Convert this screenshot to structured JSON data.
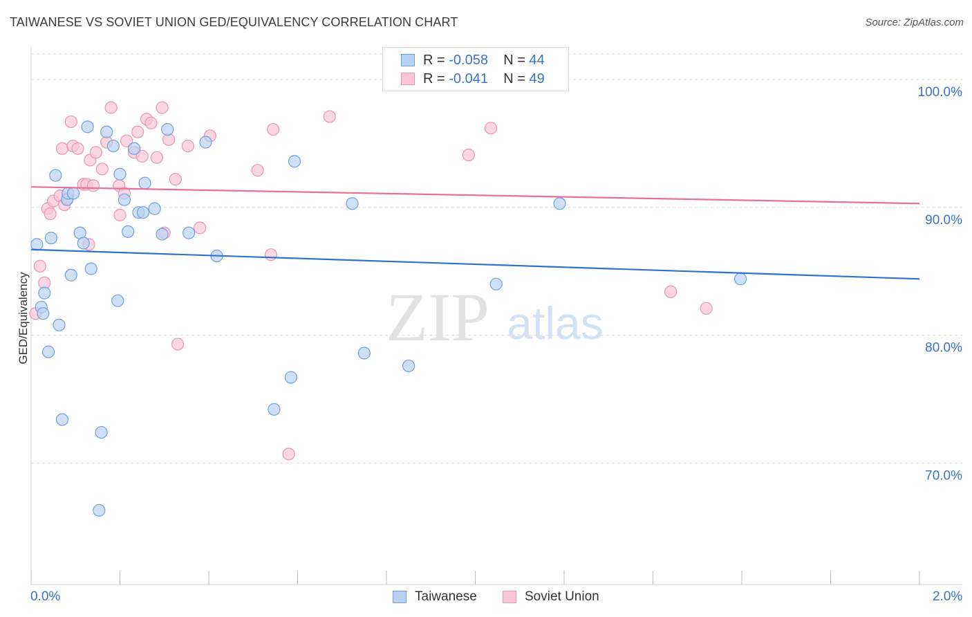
{
  "title": "TAIWANESE VS SOVIET UNION GED/EQUIVALENCY CORRELATION CHART",
  "source": "Source: ZipAtlas.com",
  "watermark": {
    "zip": "ZIP",
    "atlas": "atlas"
  },
  "legend_stats": {
    "taiwanese": {
      "r_label": "R =",
      "r_value": "-0.058",
      "n_label": "N =",
      "n_value": "44"
    },
    "soviet": {
      "r_label": "R =",
      "r_value": "-0.041",
      "n_label": "N =",
      "n_value": "49"
    }
  },
  "colors": {
    "taiwanese_fill": "#b9d2f2",
    "taiwanese_stroke": "#6f9fdc",
    "taiwanese_line": "#2f73cf",
    "soviet_fill": "#f8c6d6",
    "soviet_stroke": "#e894b2",
    "soviet_line": "#e6719a",
    "tick_label": "#3b72c4",
    "grid": "#dddddd"
  },
  "chart_data": {
    "type": "scatter",
    "title": "TAIWANESE VS SOVIET UNION GED/EQUIVALENCY CORRELATION CHART",
    "xlabel": "",
    "ylabel": "GED/Equivalency",
    "xlim": [
      0,
      2.0
    ],
    "ylim": [
      60.5,
      102.0
    ],
    "x_tick_labels": [
      "0.0%",
      "2.0%"
    ],
    "y_ticks": [
      70,
      80,
      90,
      100
    ],
    "y_tick_labels": [
      "70.0%",
      "80.0%",
      "90.0%",
      "100.0%"
    ],
    "grid": true,
    "legend": [
      "Taiwanese",
      "Soviet Union"
    ],
    "series": [
      {
        "name": "Taiwanese",
        "trend": {
          "x": [
            0.0,
            2.0
          ],
          "y": [
            86.7,
            84.4
          ]
        },
        "points": [
          [
            0.013,
            87.1
          ],
          [
            0.023,
            82.2
          ],
          [
            0.027,
            81.7
          ],
          [
            0.03,
            83.3
          ],
          [
            0.039,
            78.7
          ],
          [
            0.045,
            87.6
          ],
          [
            0.055,
            92.5
          ],
          [
            0.063,
            80.8
          ],
          [
            0.07,
            73.4
          ],
          [
            0.081,
            90.6
          ],
          [
            0.083,
            91.1
          ],
          [
            0.09,
            84.7
          ],
          [
            0.095,
            91.1
          ],
          [
            0.11,
            88
          ],
          [
            0.118,
            87.2
          ],
          [
            0.127,
            96.3
          ],
          [
            0.135,
            85.2
          ],
          [
            0.153,
            66.3
          ],
          [
            0.158,
            72.4
          ],
          [
            0.17,
            95.9
          ],
          [
            0.185,
            94.8
          ],
          [
            0.195,
            82.7
          ],
          [
            0.2,
            92.6
          ],
          [
            0.21,
            90.6
          ],
          [
            0.218,
            88.1
          ],
          [
            0.232,
            94.6
          ],
          [
            0.242,
            89.6
          ],
          [
            0.252,
            89.6
          ],
          [
            0.256,
            91.9
          ],
          [
            0.278,
            89.9
          ],
          [
            0.295,
            87.9
          ],
          [
            0.307,
            96.1
          ],
          [
            0.355,
            88
          ],
          [
            0.393,
            95.1
          ],
          [
            0.418,
            86.2
          ],
          [
            0.547,
            74.2
          ],
          [
            0.585,
            76.7
          ],
          [
            0.593,
            93.6
          ],
          [
            0.723,
            90.3
          ],
          [
            0.75,
            78.6
          ],
          [
            0.85,
            77.6
          ],
          [
            1.047,
            84
          ],
          [
            1.19,
            90.3
          ],
          [
            1.597,
            84.4
          ]
        ]
      },
      {
        "name": "Soviet Union",
        "trend": {
          "x": [
            0.0,
            2.0
          ],
          "y": [
            91.6,
            90.3
          ]
        },
        "points": [
          [
            0.01,
            81.7
          ],
          [
            0.02,
            85.4
          ],
          [
            0.03,
            84.1
          ],
          [
            0.037,
            89.9
          ],
          [
            0.043,
            89.5
          ],
          [
            0.05,
            90.5
          ],
          [
            0.065,
            90.9
          ],
          [
            0.07,
            94.6
          ],
          [
            0.075,
            90.2
          ],
          [
            0.082,
            90.7
          ],
          [
            0.09,
            96.7
          ],
          [
            0.094,
            94.8
          ],
          [
            0.105,
            94.6
          ],
          [
            0.118,
            91.8
          ],
          [
            0.125,
            91.8
          ],
          [
            0.13,
            87.1
          ],
          [
            0.133,
            93.7
          ],
          [
            0.14,
            91.7
          ],
          [
            0.146,
            94.3
          ],
          [
            0.16,
            93
          ],
          [
            0.17,
            95.1
          ],
          [
            0.18,
            97.8
          ],
          [
            0.198,
            91.7
          ],
          [
            0.2,
            89.4
          ],
          [
            0.21,
            91.1
          ],
          [
            0.215,
            95.2
          ],
          [
            0.232,
            94.3
          ],
          [
            0.24,
            95.9
          ],
          [
            0.25,
            94
          ],
          [
            0.26,
            96.9
          ],
          [
            0.27,
            96.6
          ],
          [
            0.283,
            93.9
          ],
          [
            0.295,
            97.8
          ],
          [
            0.3,
            88
          ],
          [
            0.31,
            95.3
          ],
          [
            0.325,
            92.2
          ],
          [
            0.33,
            79.3
          ],
          [
            0.353,
            94.8
          ],
          [
            0.38,
            88.4
          ],
          [
            0.403,
            95.6
          ],
          [
            0.51,
            92.9
          ],
          [
            0.54,
            86.3
          ],
          [
            0.545,
            96.1
          ],
          [
            0.58,
            70.7
          ],
          [
            0.672,
            97.1
          ],
          [
            0.985,
            94.1
          ],
          [
            1.035,
            96.2
          ],
          [
            1.44,
            83.4
          ],
          [
            1.52,
            82.1
          ]
        ]
      }
    ]
  },
  "bottom_legend": {
    "taiwanese": "Taiwanese",
    "soviet": "Soviet Union"
  }
}
